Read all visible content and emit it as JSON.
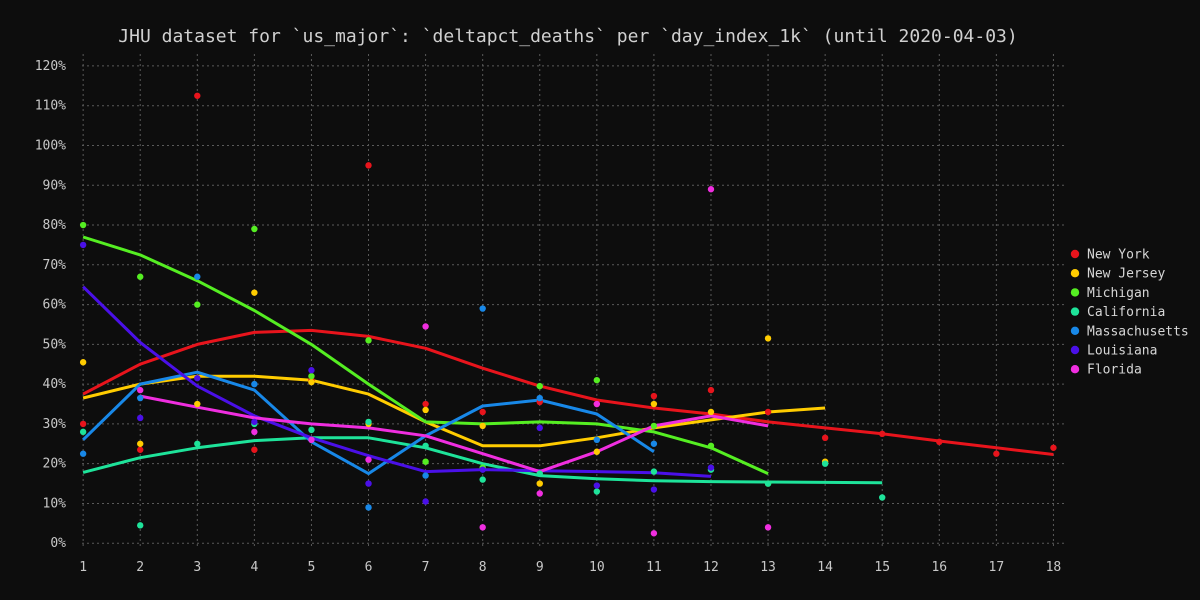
{
  "chart_data": {
    "type": "scatter",
    "title": "JHU dataset for `us_major`: `deltapct_deaths` per `day_index_1k` (until 2020-04-03)",
    "xlabel": "",
    "ylabel": "",
    "x_ticks": [
      1,
      2,
      3,
      4,
      5,
      6,
      7,
      8,
      9,
      10,
      11,
      12,
      13,
      14,
      15,
      16,
      17,
      18
    ],
    "y_ticks": [
      0,
      10,
      20,
      30,
      40,
      50,
      60,
      70,
      80,
      90,
      100,
      110,
      120
    ],
    "y_tick_labels": [
      "0%",
      "10%",
      "20%",
      "30%",
      "40%",
      "50%",
      "60%",
      "70%",
      "80%",
      "90%",
      "100%",
      "110%",
      "120%"
    ],
    "xlim": [
      0.98,
      18.22
    ],
    "ylim": [
      -1.2,
      123
    ],
    "grid": true,
    "legend_position": "right",
    "background": "#0d0d0d",
    "series": [
      {
        "name": "New York",
        "color": "#e8141c",
        "points": [
          [
            1,
            30
          ],
          [
            2,
            23.5
          ],
          [
            3,
            112.5
          ],
          [
            4,
            23.5
          ],
          [
            5,
            41
          ],
          [
            6,
            95
          ],
          [
            7,
            35
          ],
          [
            8,
            33
          ],
          [
            9,
            35.5
          ],
          [
            10,
            35
          ],
          [
            11,
            37
          ],
          [
            12,
            38.5
          ],
          [
            13,
            33
          ],
          [
            14,
            26.5
          ],
          [
            15,
            27.5
          ],
          [
            16,
            25.5
          ],
          [
            17,
            22.5
          ],
          [
            18,
            24
          ]
        ],
        "trend": [
          [
            1,
            37.5
          ],
          [
            2,
            45
          ],
          [
            3,
            50
          ],
          [
            4,
            53
          ],
          [
            5,
            53.5
          ],
          [
            6,
            52
          ],
          [
            7,
            49
          ],
          [
            8,
            44
          ],
          [
            9,
            39.5
          ],
          [
            10,
            36
          ],
          [
            11,
            34
          ],
          [
            12,
            32.5
          ],
          [
            13,
            30.5
          ],
          [
            14,
            29
          ],
          [
            15,
            27.5
          ],
          [
            16,
            25.7
          ],
          [
            17,
            24
          ],
          [
            18,
            22.3
          ]
        ]
      },
      {
        "name": "New Jersey",
        "color": "#ffcc00",
        "points": [
          [
            1,
            45.5
          ],
          [
            2,
            25
          ],
          [
            3,
            35
          ],
          [
            4,
            63
          ],
          [
            5,
            40.5
          ],
          [
            6,
            30
          ],
          [
            7,
            33.5
          ],
          [
            8,
            29.5
          ],
          [
            9,
            15
          ],
          [
            10,
            23
          ],
          [
            11,
            35
          ],
          [
            12,
            33
          ],
          [
            13,
            51.5
          ],
          [
            14,
            20.5
          ]
        ],
        "trend": [
          [
            1,
            36.5
          ],
          [
            2,
            40
          ],
          [
            3,
            42
          ],
          [
            4,
            42
          ],
          [
            5,
            41
          ],
          [
            6,
            37.5
          ],
          [
            7,
            30.5
          ],
          [
            8,
            24.5
          ],
          [
            9,
            24.5
          ],
          [
            10,
            26.5
          ],
          [
            11,
            29
          ],
          [
            12,
            31
          ],
          [
            13,
            33
          ],
          [
            14,
            34
          ]
        ]
      },
      {
        "name": "Michigan",
        "color": "#55ee22",
        "points": [
          [
            1,
            80
          ],
          [
            2,
            67
          ],
          [
            3,
            60
          ],
          [
            4,
            79
          ],
          [
            5,
            42
          ],
          [
            6,
            51
          ],
          [
            7,
            20.5
          ],
          [
            8,
            19
          ],
          [
            9,
            39.5
          ],
          [
            10,
            41
          ],
          [
            11,
            29.5
          ],
          [
            12,
            24.5
          ],
          [
            13,
            15
          ]
        ],
        "trend": [
          [
            1,
            77
          ],
          [
            2,
            72.5
          ],
          [
            3,
            66
          ],
          [
            4,
            58.5
          ],
          [
            5,
            50
          ],
          [
            6,
            40
          ],
          [
            7,
            30.5
          ],
          [
            8,
            30
          ],
          [
            9,
            30.5
          ],
          [
            10,
            30
          ],
          [
            11,
            28
          ],
          [
            12,
            24
          ],
          [
            13,
            17.5
          ]
        ]
      },
      {
        "name": "California",
        "color": "#1ee39a",
        "points": [
          [
            1,
            28
          ],
          [
            2,
            4.5
          ],
          [
            3,
            25
          ],
          [
            4,
            30
          ],
          [
            5,
            28.5
          ],
          [
            6,
            30.5
          ],
          [
            7,
            24.5
          ],
          [
            8,
            16
          ],
          [
            9,
            17.5
          ],
          [
            10,
            13
          ],
          [
            11,
            18
          ],
          [
            12,
            18.5
          ],
          [
            13,
            15
          ],
          [
            14,
            20
          ],
          [
            15,
            11.5
          ]
        ],
        "trend": [
          [
            1,
            17.8
          ],
          [
            2,
            21.5
          ],
          [
            3,
            24
          ],
          [
            4,
            25.8
          ],
          [
            5,
            26.5
          ],
          [
            6,
            26.5
          ],
          [
            7,
            24
          ],
          [
            8,
            20
          ],
          [
            9,
            17
          ],
          [
            10,
            16.2
          ],
          [
            11,
            15.7
          ],
          [
            12,
            15.5
          ],
          [
            13,
            15.4
          ],
          [
            14,
            15.3
          ],
          [
            15,
            15.2
          ]
        ]
      },
      {
        "name": "Massachusetts",
        "color": "#1888e8",
        "points": [
          [
            1,
            22.5
          ],
          [
            2,
            36.5
          ],
          [
            3,
            67
          ],
          [
            4,
            40
          ],
          [
            5,
            26
          ],
          [
            6,
            9
          ],
          [
            7,
            17
          ],
          [
            8,
            59
          ],
          [
            9,
            36.5
          ],
          [
            10,
            26
          ],
          [
            11,
            25
          ]
        ],
        "trend": [
          [
            1,
            26
          ],
          [
            2,
            40
          ],
          [
            3,
            43
          ],
          [
            4,
            38.5
          ],
          [
            5,
            25.5
          ],
          [
            6,
            17.5
          ],
          [
            7,
            27
          ],
          [
            8,
            34.5
          ],
          [
            9,
            36
          ],
          [
            10,
            32.5
          ],
          [
            11,
            23
          ]
        ]
      },
      {
        "name": "Louisiana",
        "color": "#4a10e8",
        "points": [
          [
            1,
            75
          ],
          [
            2,
            31.5
          ],
          [
            3,
            41.5
          ],
          [
            4,
            30.5
          ],
          [
            5,
            43.5
          ],
          [
            6,
            15
          ],
          [
            7,
            10.5
          ],
          [
            8,
            18.5
          ],
          [
            9,
            29
          ],
          [
            10,
            14.5
          ],
          [
            11,
            13.5
          ],
          [
            12,
            19
          ]
        ],
        "trend": [
          [
            1,
            64.5
          ],
          [
            2,
            50.5
          ],
          [
            3,
            39.5
          ],
          [
            4,
            32
          ],
          [
            5,
            26.5
          ],
          [
            6,
            22
          ],
          [
            7,
            18
          ],
          [
            8,
            18.5
          ],
          [
            9,
            18.2
          ],
          [
            10,
            18
          ],
          [
            11,
            17.7
          ],
          [
            12,
            16.8
          ]
        ]
      },
      {
        "name": "Florida",
        "color": "#f02ee0",
        "points": [
          [
            2,
            38.5
          ],
          [
            4,
            28
          ],
          [
            5,
            26
          ],
          [
            6,
            21
          ],
          [
            7,
            54.5
          ],
          [
            8,
            4
          ],
          [
            9,
            12.5
          ],
          [
            10,
            35
          ],
          [
            11,
            2.5
          ],
          [
            12,
            89
          ],
          [
            13,
            4
          ]
        ],
        "trend": [
          [
            2,
            37
          ],
          [
            3,
            34.2
          ],
          [
            4,
            31.5
          ],
          [
            5,
            30
          ],
          [
            6,
            29
          ],
          [
            7,
            27
          ],
          [
            8,
            22.5
          ],
          [
            9,
            18
          ],
          [
            10,
            23
          ],
          [
            11,
            29.5
          ],
          [
            12,
            32
          ],
          [
            13,
            29.5
          ]
        ]
      }
    ]
  }
}
